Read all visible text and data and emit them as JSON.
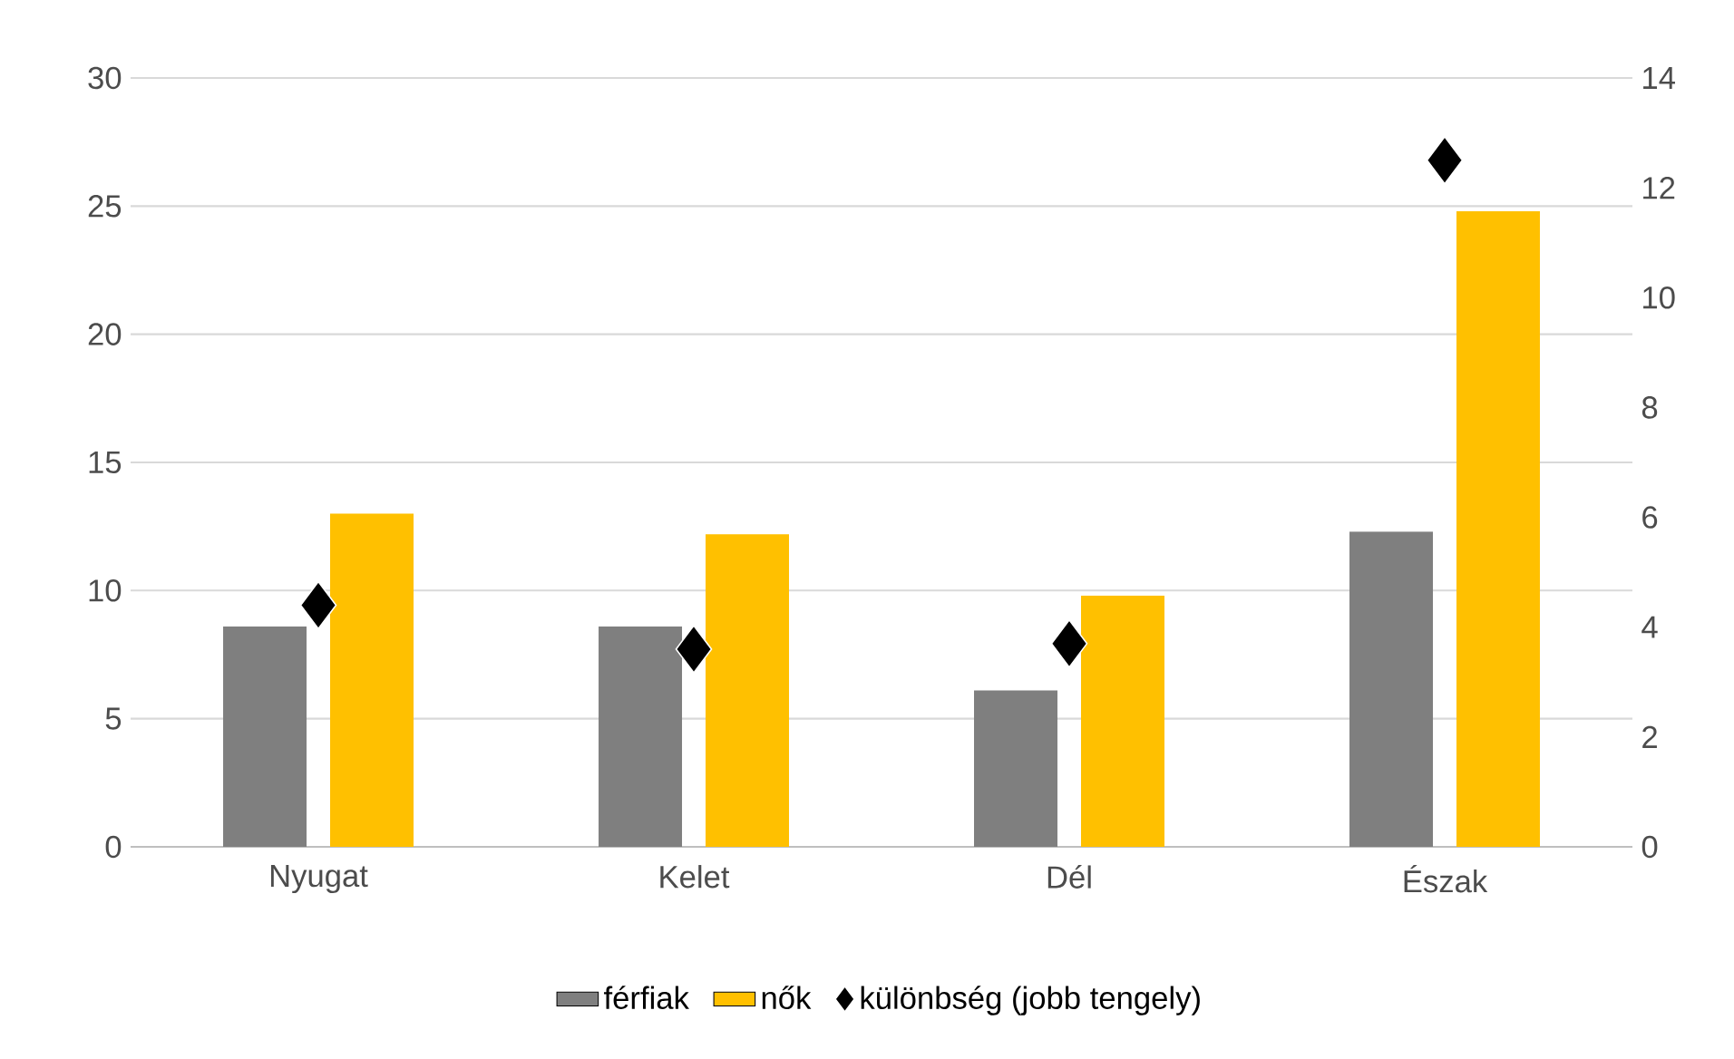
{
  "chart_data": {
    "type": "bar",
    "categories": [
      "Nyugat",
      "Kelet",
      "Dél",
      "Észak"
    ],
    "series": [
      {
        "name": "férfiak",
        "color": "#7f7f7f",
        "values": [
          8.6,
          8.6,
          6.1,
          12.3
        ]
      },
      {
        "name": "nők",
        "color": "#ffc000",
        "values": [
          13.0,
          12.2,
          9.8,
          24.8
        ]
      },
      {
        "name": "különbség (jobb tengely)",
        "type": "scatter",
        "axis": "y2",
        "marker": "diamond",
        "color": "#000000",
        "values": [
          4.4,
          3.6,
          3.7,
          12.5
        ]
      }
    ],
    "ylim": [
      0,
      30
    ],
    "yticks": [
      0,
      5,
      10,
      15,
      20,
      25,
      30
    ],
    "y2lim": [
      0,
      14
    ],
    "y2ticks": [
      0,
      2,
      4,
      6,
      8,
      10,
      12,
      14
    ],
    "grid": "y",
    "legend": "bottom"
  }
}
